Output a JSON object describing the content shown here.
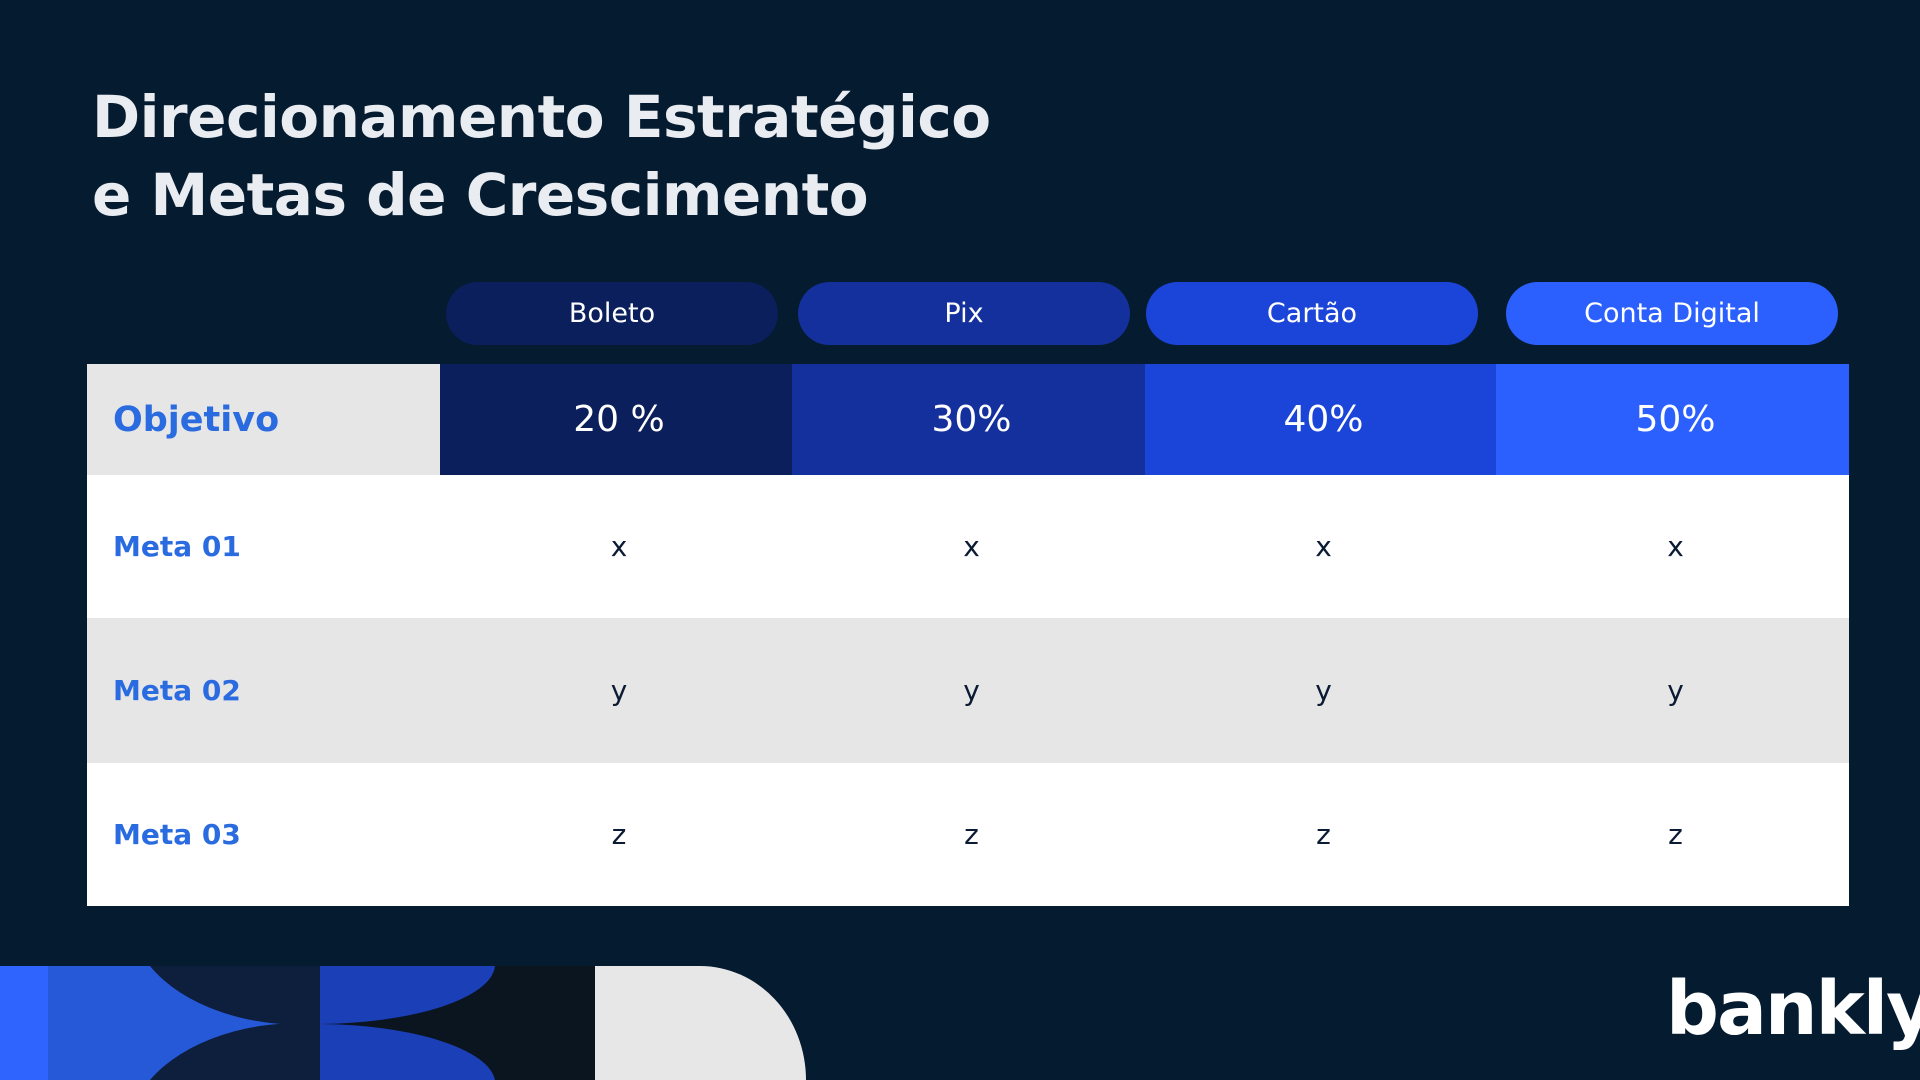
{
  "title": [
    "Direcionamento Estratégico",
    "e Metas de Crescimento"
  ],
  "table": {
    "columns": [
      "Boleto",
      "Pix",
      "Cartão",
      "Conta Digital"
    ],
    "rows": [
      [
        "Objetivo",
        "20 %",
        "30%",
        "40%",
        "50%"
      ],
      [
        "Meta 01",
        "x",
        "x",
        "x",
        "x"
      ],
      [
        "Meta 02",
        "y",
        "y",
        "y",
        "y"
      ],
      [
        "Meta 03",
        "z",
        "z",
        "z",
        "z"
      ]
    ]
  },
  "logo": "bankly"
}
